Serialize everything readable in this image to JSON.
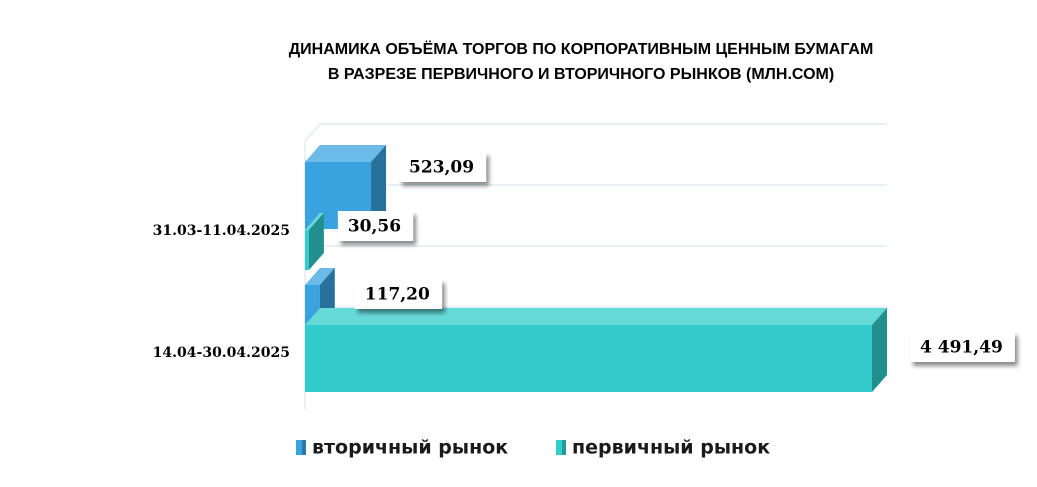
{
  "chart_data": {
    "type": "bar3d-horizontal",
    "title": [
      "ДИНАМИКА ОБЪЁМА ТОРГОВ ПО КОРПОРАТИВНЫМ ЦЕННЫМ БУМАГАМ",
      "В РАЗРЕЗЕ ПЕРВИЧНОГО И ВТОРИЧНОГО РЫНКОВ  (МЛН.СОМ)"
    ],
    "categories": [
      "31.03-11.04.2025",
      "14.04-30.04.2025"
    ],
    "series": [
      {
        "name": "вторичный рынок",
        "color": "#3aa3df",
        "values": [
          523.09,
          117.2
        ],
        "value_labels": [
          "523,09",
          "117,20"
        ]
      },
      {
        "name": "первичный рынок",
        "color": "#33cccc",
        "values": [
          30.56,
          4491.49
        ],
        "value_labels": [
          "30,56",
          "4 491,49"
        ]
      }
    ]
  }
}
